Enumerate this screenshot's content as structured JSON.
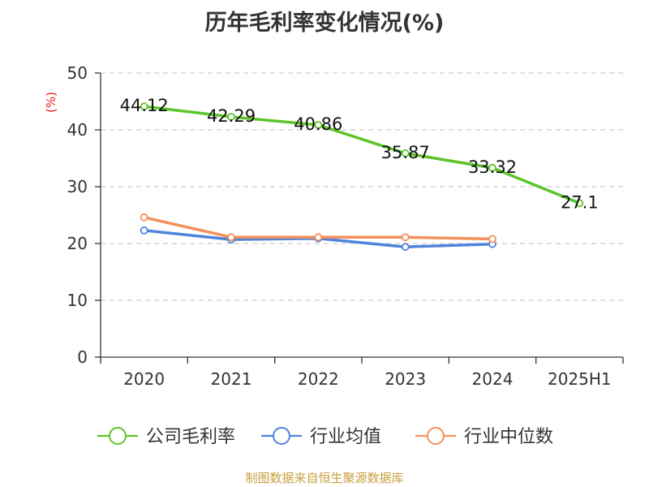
{
  "chart_data": {
    "type": "line",
    "title": "历年毛利率变化情况(%)",
    "ylabel": "(%)",
    "xlabel": "",
    "categories": [
      "2020",
      "2021",
      "2022",
      "2023",
      "2024",
      "2025H1"
    ],
    "ylim": [
      0,
      50
    ],
    "yticks": [
      0,
      10,
      20,
      30,
      40,
      50
    ],
    "grid": true,
    "legend_position": "bottom",
    "series": [
      {
        "name": "公司毛利率",
        "color": "#5cc42a",
        "values": [
          44.12,
          42.29,
          40.86,
          35.87,
          33.32,
          27.1
        ],
        "labels": [
          "44.12",
          "42.29",
          "40.86",
          "35.87",
          "33.32",
          "27.1"
        ]
      },
      {
        "name": "行业均值",
        "color": "#4f84dc",
        "values": [
          22.3,
          20.7,
          20.9,
          19.4,
          19.9,
          null
        ]
      },
      {
        "name": "行业中位数",
        "color": "#f5905c",
        "values": [
          24.6,
          21.1,
          21.1,
          21.1,
          20.8,
          null
        ]
      }
    ]
  },
  "footer": {
    "source": "制图数据来自恒生聚源数据库",
    "source_color": "#c8a03c"
  },
  "colors": {
    "axis": "#333333",
    "grid": "#cccccc",
    "ylabel": "#e8191b",
    "title": "#333333"
  }
}
